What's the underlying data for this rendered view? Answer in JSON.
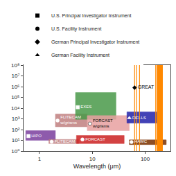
{
  "chart_data": {
    "type": "coverage",
    "xlabel": "Wavelength (μm)",
    "log": true,
    "xlim": [
      0.5,
      300
    ],
    "ylim": [
      1,
      100000000
    ],
    "xticks": [
      1,
      10,
      100
    ],
    "yticks": [
      {
        "value": 1,
        "label": "10⁰"
      },
      {
        "value": 10,
        "label": "10¹"
      },
      {
        "value": 100,
        "label": "10²"
      },
      {
        "value": 1000,
        "label": "10³"
      },
      {
        "value": 10000,
        "label": "10⁴"
      },
      {
        "value": 100000,
        "label": "10⁵"
      },
      {
        "value": 1000000,
        "label": "10⁶"
      },
      {
        "value": 10000000,
        "label": "10⁷"
      },
      {
        "value": 100000000,
        "label": "10⁸"
      }
    ],
    "grid": false,
    "legend": "upper left",
    "series": [
      {
        "name": "HIPO",
        "color": "#7B3F9E",
        "marker": "square",
        "x": [
          0.55,
          2.0
        ],
        "y": [
          10,
          80
        ],
        "point": [
          0.62,
          25
        ]
      },
      {
        "name": "FLITECAM",
        "color": "#C08080",
        "marker": "circle",
        "x": [
          1.5,
          5.5
        ],
        "y": [
          5,
          12
        ],
        "point": [
          1.7,
          7.5
        ]
      },
      {
        "name": "FLITECAM\nw/grisms",
        "color": "#C08080",
        "marker": "circle",
        "x": [
          2.0,
          8.0
        ],
        "y": [
          180,
          2800
        ],
        "point": [
          2.2,
          700
        ]
      },
      {
        "name": "EXES",
        "color": "#4A9A4A",
        "marker": "square",
        "x": [
          4.8,
          28.0
        ],
        "y": [
          900,
          280000
        ],
        "point": [
          5.3,
          12000
        ]
      },
      {
        "name": "FORCAST",
        "color": "#CC2222",
        "marker": "circle",
        "x": [
          5.0,
          40.0
        ],
        "y": [
          5,
          28
        ],
        "point": [
          6.5,
          12
        ]
      },
      {
        "name": "FORCAST\nw/grisms",
        "color": "#E8A0A0",
        "marker": "circle",
        "x": [
          8.0,
          50.0
        ],
        "y": [
          80,
          2000
        ],
        "point": [
          9.0,
          350
        ]
      },
      {
        "name": "FIFI-LS",
        "color": "#2222AA",
        "marker": "triangle",
        "x": [
          45.0,
          205.0
        ],
        "y": [
          400,
          4500
        ],
        "point": [
          50.0,
          1200
        ]
      },
      {
        "name": "HAWC",
        "color": "#7A3000",
        "marker": "circle",
        "x": [
          50.0,
          250.0
        ],
        "y": [
          4,
          11
        ],
        "point": [
          55.0,
          7
        ]
      }
    ],
    "lines": {
      "name": "GREAT",
      "color": "#FF8800",
      "x": [
        63,
        68,
        78,
        158
      ],
      "band_x": [
        165,
        215
      ],
      "band_y": [
        1,
        100000000
      ],
      "point": [
        63,
        800000
      ],
      "marker": "diamond",
      "label_point": [
        72,
        800000
      ]
    },
    "legend_items": [
      {
        "name": "U.S. Principal Investigator Instrument",
        "marker": "square"
      },
      {
        "name": "U.S. Facility Instrument",
        "marker": "circle"
      },
      {
        "name": "German Principal Investigator Instrument",
        "marker": "diamond"
      },
      {
        "name": "German Facility Instrument",
        "marker": "triangle"
      }
    ]
  }
}
